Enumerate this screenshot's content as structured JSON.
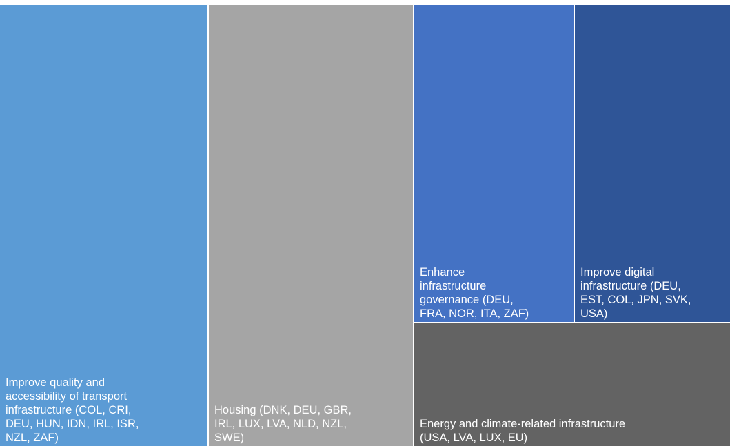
{
  "chart_data": {
    "type": "treemap",
    "title": "",
    "categories": [
      "Improve quality and\naccessibility of transport\ninfrastructure (COL, CRI,\nDEU, HUN, IDN, IRL, ISR,\nNZL, ZAF)",
      "Housing (DNK, DEU, GBR,\nIRL, LUX, LVA, NLD, NZL,\nSWE)",
      "Enhance\ninfrastructure\ngovernance (DEU,\nFRA, NOR, ITA, ZAF)",
      "Improve digital\ninfrastructure (DEU,\nEST, COL, JPN, SVK,\nUSA)",
      "Energy and climate-related infrastructure\n(USA, LVA, LUX, EU)"
    ],
    "values": [
      9,
      9,
      5,
      6,
      4
    ],
    "colors": [
      "#5b9bd5",
      "#a5a5a5",
      "#4472c4",
      "#2f5597",
      "#636363"
    ]
  }
}
